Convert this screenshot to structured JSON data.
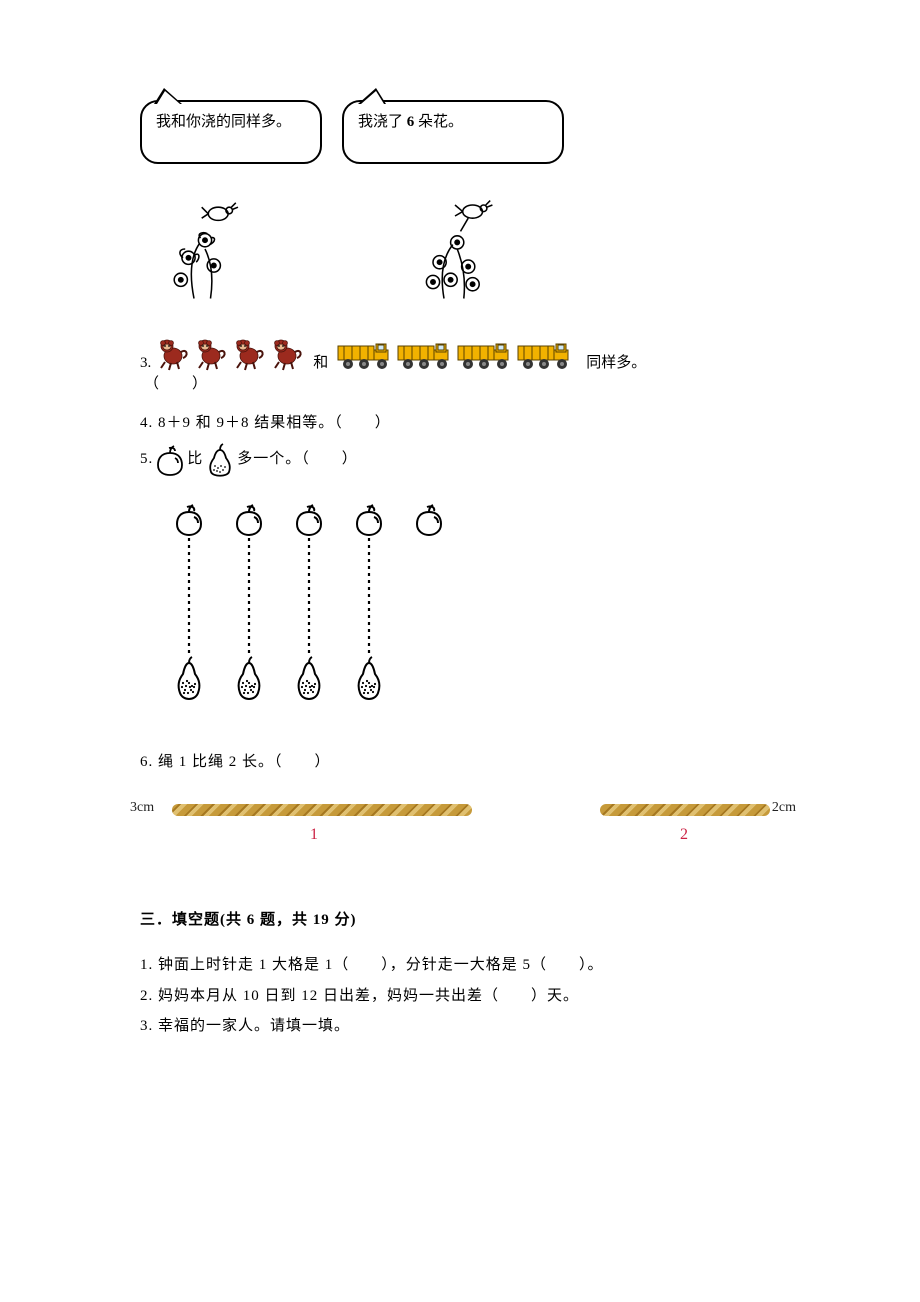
{
  "speech": {
    "left": "我和你浇的同样多。",
    "right_a": "我浇了 ",
    "right_b": "6",
    "right_c": " 朵花。"
  },
  "q3": {
    "prefix": "3.",
    "and": "和",
    "suffix": "同样多。",
    "paren": "（　　）",
    "monkey_count": 4,
    "truck_count": 4,
    "monkey_color": "#9c2a1e",
    "truck_body": "#f2b200",
    "truck_wheel": "#333333"
  },
  "q4": {
    "text": "4. 8＋9 和 9＋8 结果相等。（　　）"
  },
  "q5": {
    "prefix": "5.",
    "mid1": "比",
    "mid2": "多一个。（　　）",
    "apple_count": 5,
    "pear_count": 4
  },
  "q6": {
    "text": "6. 绳 1 比绳 2 长。（　　）",
    "left_label": "3cm",
    "right_label": "2cm",
    "num1": "1",
    "num2": "2"
  },
  "section3": {
    "title": "三．填空题(共 6 题，共 19 分)",
    "q1": "1. 钟面上时针走 1 大格是 1（　　），分针走一大格是 5（　　）。",
    "q2": "2. 妈妈本月从 10 日到 12 日出差，妈妈一共出差（　　）天。",
    "q3": "3. 幸福的一家人。请填一填。"
  }
}
